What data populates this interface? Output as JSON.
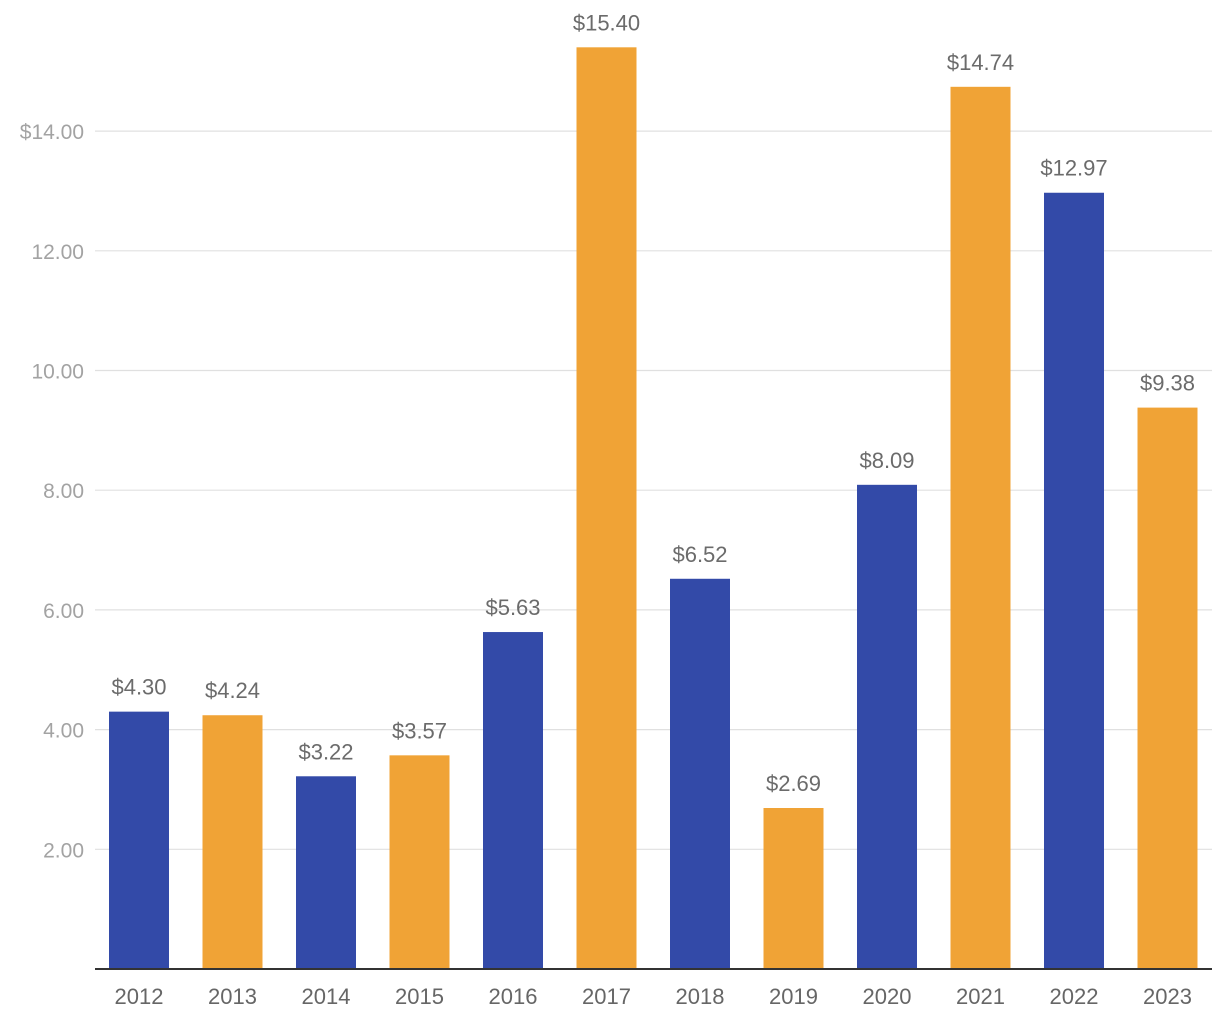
{
  "chart_data": {
    "type": "bar",
    "title": "",
    "xlabel": "",
    "ylabel": "",
    "categories": [
      "2012",
      "2013",
      "2014",
      "2015",
      "2016",
      "2017",
      "2018",
      "2019",
      "2020",
      "2021",
      "2022",
      "2023"
    ],
    "values": [
      4.3,
      4.24,
      3.22,
      3.57,
      5.63,
      15.4,
      6.52,
      2.69,
      8.09,
      14.74,
      12.97,
      9.38
    ],
    "data_labels": [
      "$4.30",
      "$4.24",
      "$3.22",
      "$3.57",
      "$5.63",
      "$15.40",
      "$6.52",
      "$2.69",
      "$8.09",
      "$14.74",
      "$12.97",
      "$9.38"
    ],
    "yticks": [
      2,
      4,
      6,
      8,
      10,
      12,
      14
    ],
    "ytick_labels": [
      "2.00",
      "4.00",
      "6.00",
      "8.00",
      "10.00",
      "12.00",
      "$14.00"
    ],
    "ylim": [
      0,
      15.4
    ],
    "grid": true,
    "legend": "none",
    "colors": [
      "#334aa8",
      "#f0a336"
    ]
  }
}
